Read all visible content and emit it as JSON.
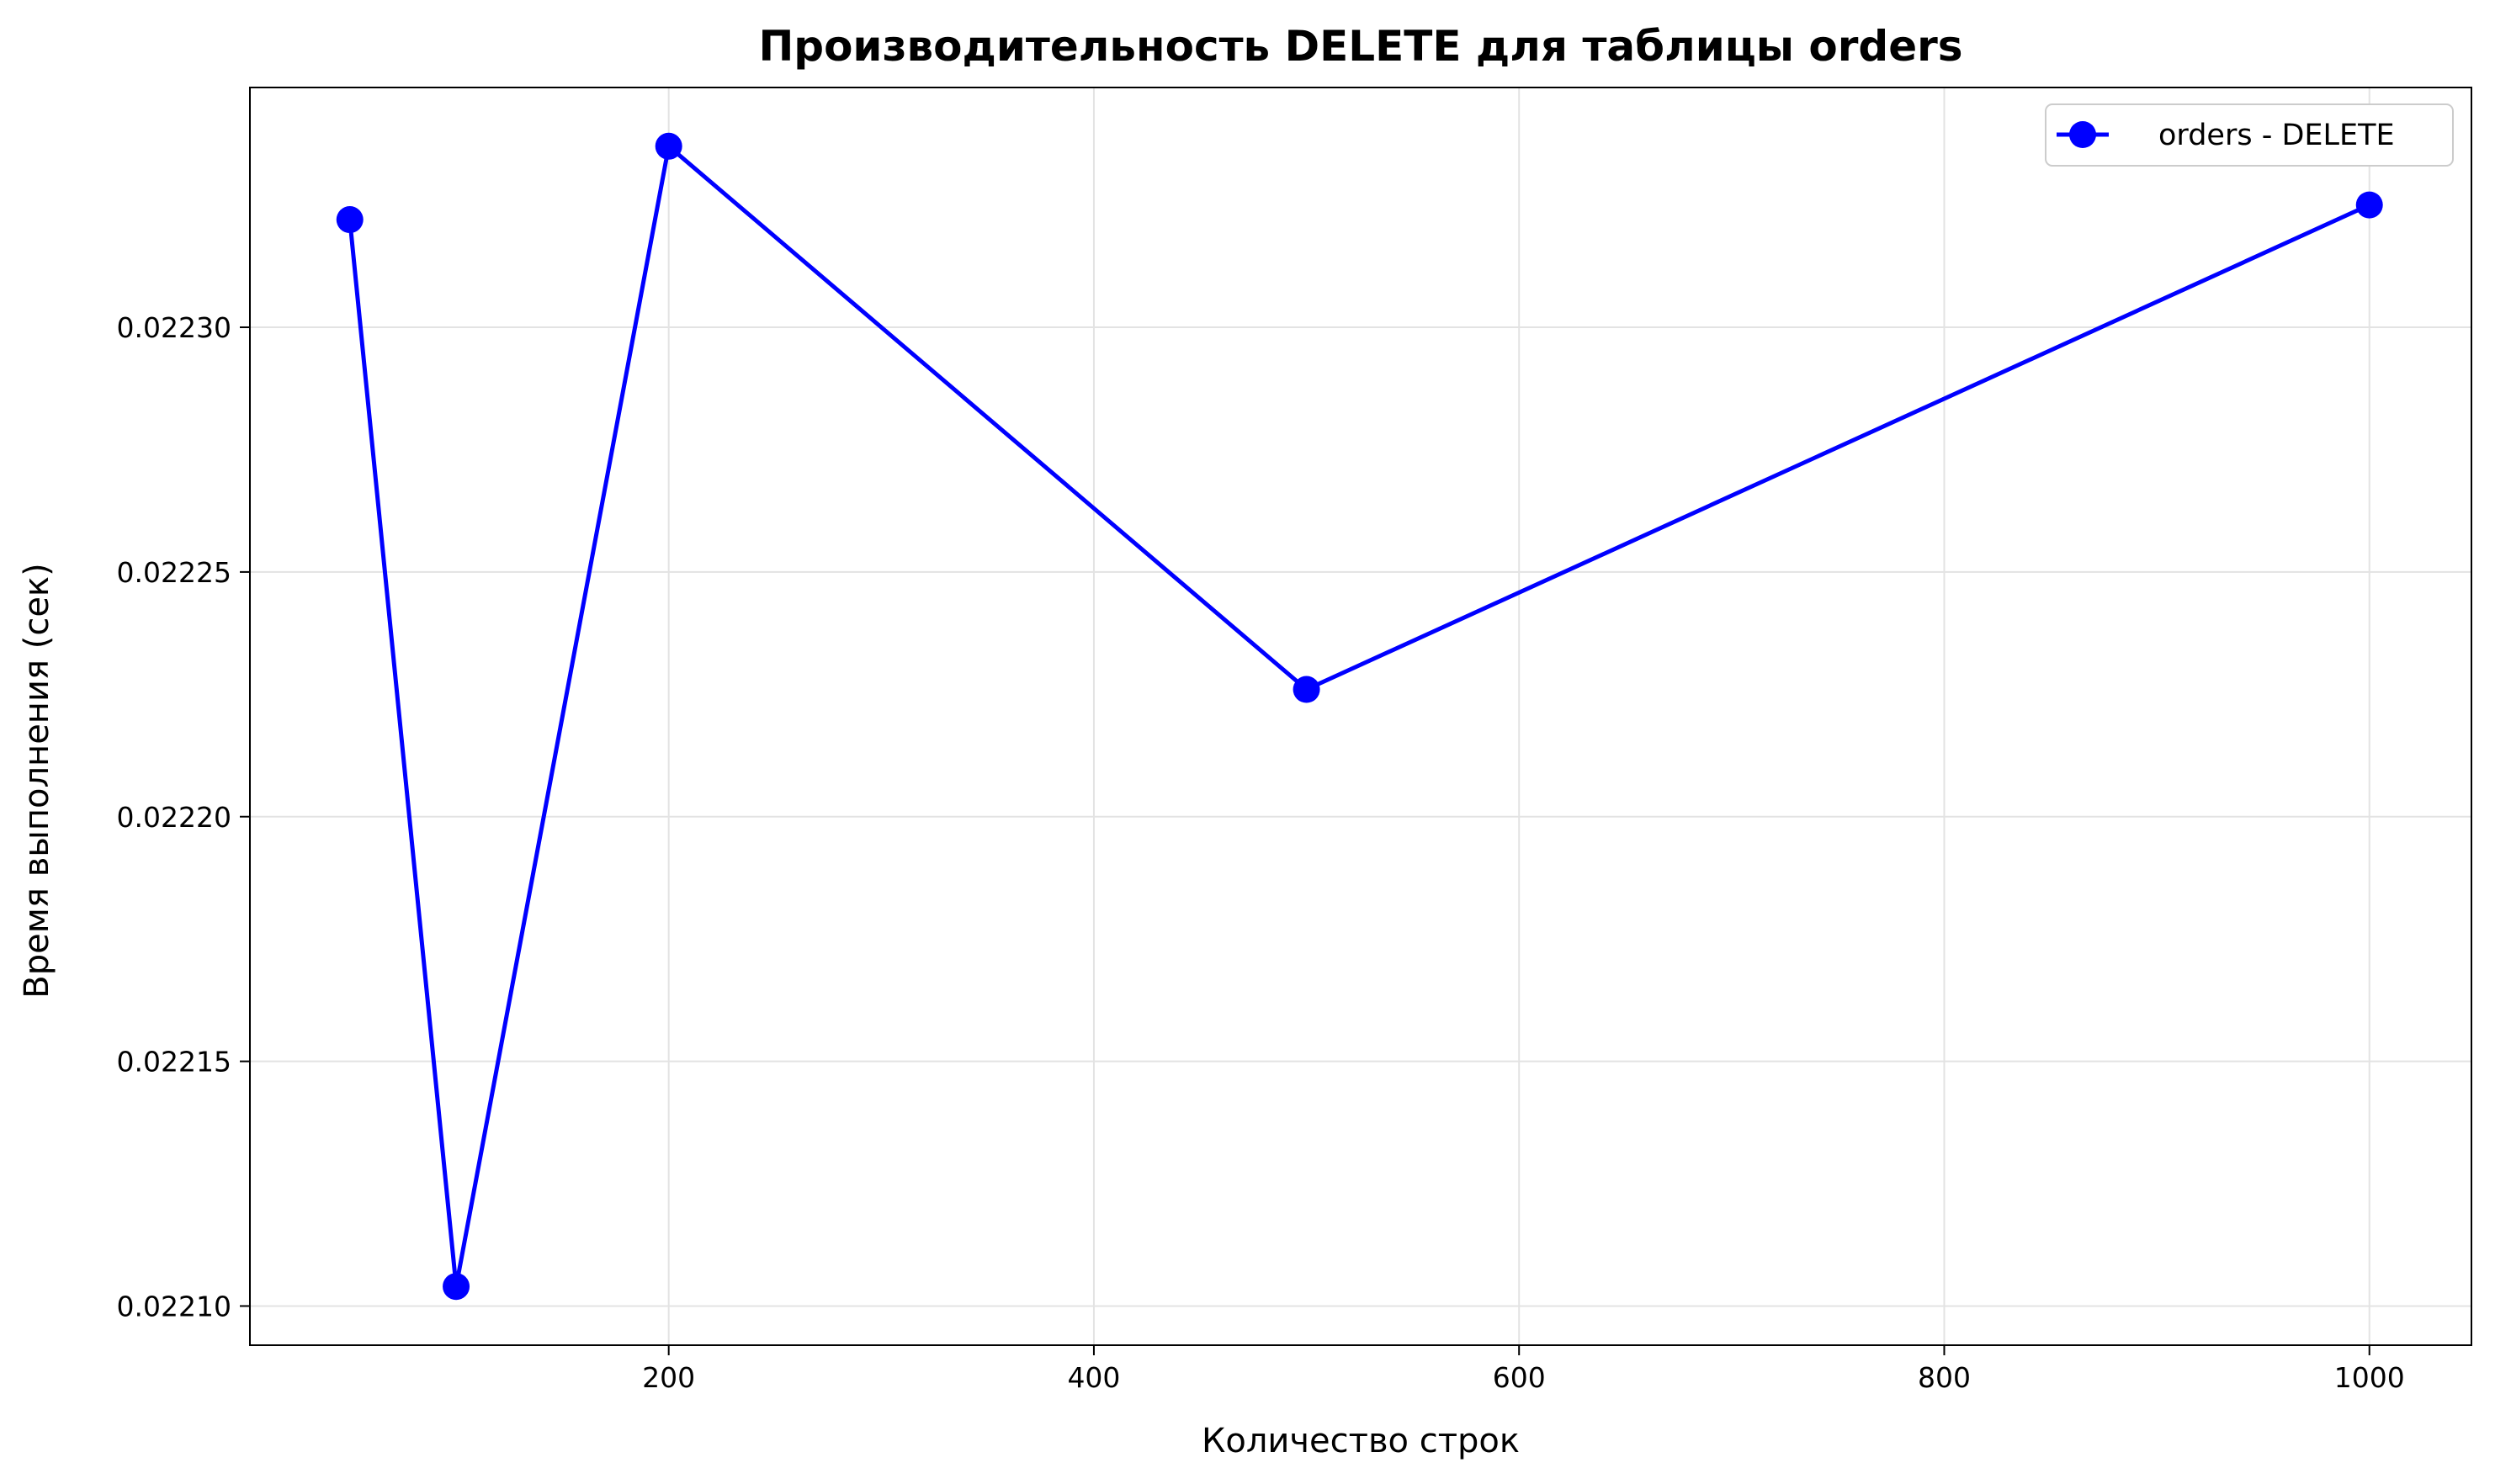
{
  "chart_data": {
    "type": "line",
    "title": "Производительность DELETE для таблицы orders",
    "xlabel": "Количество строк",
    "ylabel": "Время выполнения (сек)",
    "x": [
      50,
      100,
      200,
      500,
      1000
    ],
    "series": [
      {
        "name": "orders - DELETE",
        "color": "#0000ff",
        "marker": "circle",
        "values": [
          0.022322,
          0.022104,
          0.022337,
          0.022226,
          0.022325
        ]
      }
    ],
    "xlim": [
      3,
      1048
    ],
    "ylim": [
      0.022092,
      0.022349
    ],
    "xticks": [
      200,
      400,
      600,
      800,
      1000
    ],
    "xtick_labels": [
      "200",
      "400",
      "600",
      "800",
      "1000"
    ],
    "yticks": [
      0.0221,
      0.02215,
      0.0222,
      0.02225,
      0.0223
    ],
    "ytick_labels": [
      "0.02210",
      "0.02215",
      "0.02220",
      "0.02225",
      "0.02230"
    ],
    "grid": true,
    "legend_position": "top-right"
  }
}
